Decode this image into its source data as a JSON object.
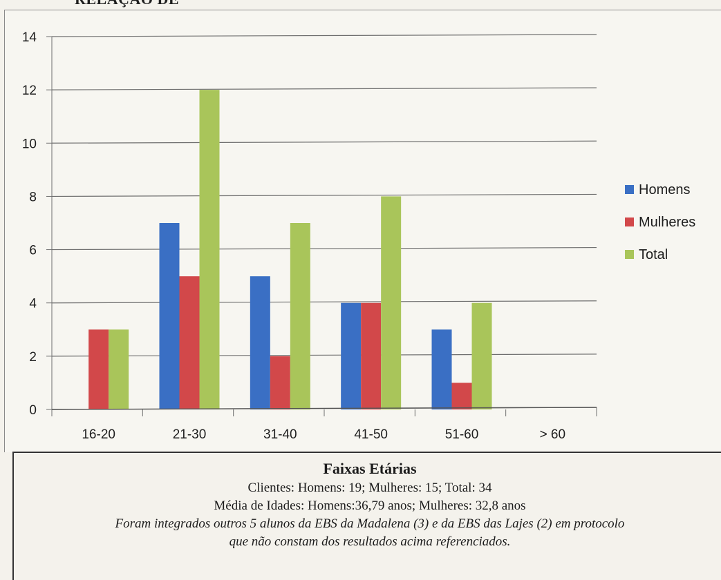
{
  "page": {
    "clipped_title": "RELAÇÃO DE"
  },
  "chart_data": {
    "type": "bar",
    "categories": [
      "16-20",
      "21-30",
      "31-40",
      "41-50",
      "51-60",
      "> 60"
    ],
    "series": [
      {
        "name": "Homens",
        "color": "#3a6fc4",
        "values": [
          0,
          7,
          5,
          4,
          3,
          0
        ]
      },
      {
        "name": "Mulheres",
        "color": "#d2484a",
        "values": [
          3,
          5,
          2,
          4,
          1,
          0
        ]
      },
      {
        "name": "Total",
        "color": "#a9c55a",
        "values": [
          3,
          12,
          7,
          8,
          4,
          0
        ]
      }
    ],
    "yticks": [
      0,
      2,
      4,
      6,
      8,
      10,
      12,
      14
    ],
    "ylim": [
      0,
      14
    ],
    "grid": true,
    "legend": "right",
    "title": "",
    "xlabel": "",
    "ylabel": ""
  },
  "caption": {
    "heading": "Faixas Etárias",
    "line1": "Clientes: Homens: 19; Mulheres: 15; Total: 34",
    "line2": "Média de Idades: Homens:36,79 anos; Mulheres: 32,8 anos",
    "line3": "Foram integrados outros 5 alunos da EBS da Madalena (3) e da EBS das Lajes (2) em protocolo",
    "line4": "que não constam dos resultados acima referenciados."
  }
}
